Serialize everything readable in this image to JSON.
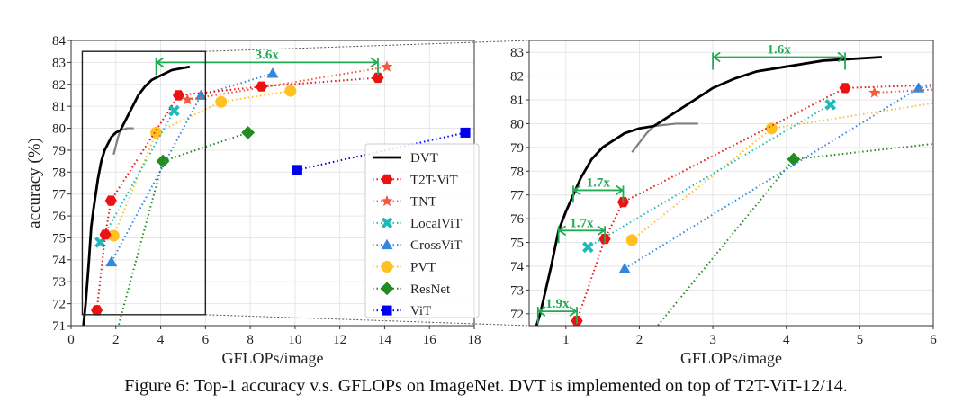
{
  "caption": "Figure 6: Top-1 accuracy v.s. GFLOPs on ImageNet. DVT is implemented on top of T2T-ViT-12/14.",
  "chart_data": [
    {
      "type": "line",
      "id": "left",
      "xlabel": "GFLOPs/image",
      "ylabel": "accuracy (%)",
      "xlim": [
        0,
        18
      ],
      "ylim": [
        71,
        84
      ],
      "xticks": [
        0,
        2,
        4,
        6,
        8,
        10,
        12,
        14,
        16,
        18
      ],
      "yticks": [
        71,
        72,
        73,
        74,
        75,
        76,
        77,
        78,
        79,
        80,
        81,
        82,
        83,
        84
      ],
      "grid": true,
      "legend_position": "lower-right",
      "zoom_box": {
        "x": [
          0.5,
          6
        ],
        "y": [
          71.5,
          83.5
        ]
      },
      "annotations": [
        {
          "text": "3.6x",
          "x_from": 3.8,
          "x_to": 13.7,
          "y": 83.0
        }
      ]
    },
    {
      "type": "line",
      "id": "right",
      "xlabel": "GFLOPs/image",
      "ylabel": "",
      "xlim": [
        0.5,
        6
      ],
      "ylim": [
        71.5,
        83.5
      ],
      "xticks": [
        1,
        2,
        3,
        4,
        5,
        6
      ],
      "yticks": [
        72,
        73,
        74,
        75,
        76,
        77,
        78,
        79,
        80,
        81,
        82,
        83
      ],
      "grid": true,
      "annotations": [
        {
          "text": "1.6x",
          "x_from": 3.0,
          "x_to": 4.8,
          "y": 82.8
        },
        {
          "text": "1.7x",
          "x_from": 1.1,
          "x_to": 1.78,
          "y": 77.2
        },
        {
          "text": "1.7x",
          "x_from": 0.9,
          "x_to": 1.53,
          "y": 75.5
        },
        {
          "text": "1.9x",
          "x_from": 0.62,
          "x_to": 1.15,
          "y": 72.1
        }
      ]
    }
  ],
  "series": [
    {
      "name": "DVT",
      "color": "#000000",
      "marker": "none",
      "style": "solid",
      "x": [
        0.55,
        0.65,
        0.8,
        0.9,
        1.0,
        1.1,
        1.2,
        1.35,
        1.5,
        1.8,
        2.0,
        2.2,
        2.5,
        2.8,
        3.0,
        3.3,
        3.6,
        4.0,
        4.5,
        5.3
      ],
      "y": [
        71,
        72,
        74,
        75.5,
        76.3,
        77.0,
        77.7,
        78.5,
        79.0,
        79.6,
        79.8,
        79.9,
        80.5,
        81.1,
        81.5,
        81.9,
        82.2,
        82.4,
        82.65,
        82.8
      ]
    },
    {
      "name": "T2T-ViT",
      "color": "#ee1111",
      "marker": "hexagon",
      "style": "dotted",
      "x": [
        1.15,
        1.53,
        1.78,
        4.8,
        8.5,
        13.7
      ],
      "y": [
        71.7,
        75.15,
        76.7,
        81.5,
        81.9,
        82.3
      ]
    },
    {
      "name": "TNT",
      "color": "#f05a40",
      "marker": "star",
      "style": "dotted",
      "x": [
        5.2,
        14.1
      ],
      "y": [
        81.3,
        82.8
      ]
    },
    {
      "name": "LocalViT",
      "color": "#20b8b8",
      "marker": "x",
      "style": "dotted",
      "x": [
        1.3,
        4.6
      ],
      "y": [
        74.8,
        80.8
      ]
    },
    {
      "name": "CrossViT",
      "color": "#3388dd",
      "marker": "triangle",
      "style": "dotted",
      "x": [
        1.8,
        5.8,
        9.0
      ],
      "y": [
        73.9,
        81.5,
        82.5
      ]
    },
    {
      "name": "PVT",
      "color": "#ffc020",
      "marker": "circle",
      "style": "dotted",
      "x": [
        1.9,
        3.8,
        6.7,
        9.8
      ],
      "y": [
        75.1,
        79.8,
        81.2,
        81.7
      ]
    },
    {
      "name": "ResNet",
      "color": "#228b22",
      "marker": "diamond",
      "style": "dotted",
      "x": [
        1.8,
        4.1,
        7.9
      ],
      "y": [
        69.8,
        78.5,
        79.8
      ]
    },
    {
      "name": "ViT",
      "color": "#0000ee",
      "marker": "square",
      "style": "dotted",
      "x": [
        10.1,
        17.6
      ],
      "y": [
        78.1,
        79.8
      ]
    }
  ],
  "gray_curve": {
    "color": "#808080",
    "x": [
      1.9,
      2.1,
      2.2,
      2.5,
      2.8
    ],
    "y": [
      78.8,
      79.6,
      79.9,
      80.0,
      80.0
    ]
  },
  "annotation_color": "#22aa55"
}
